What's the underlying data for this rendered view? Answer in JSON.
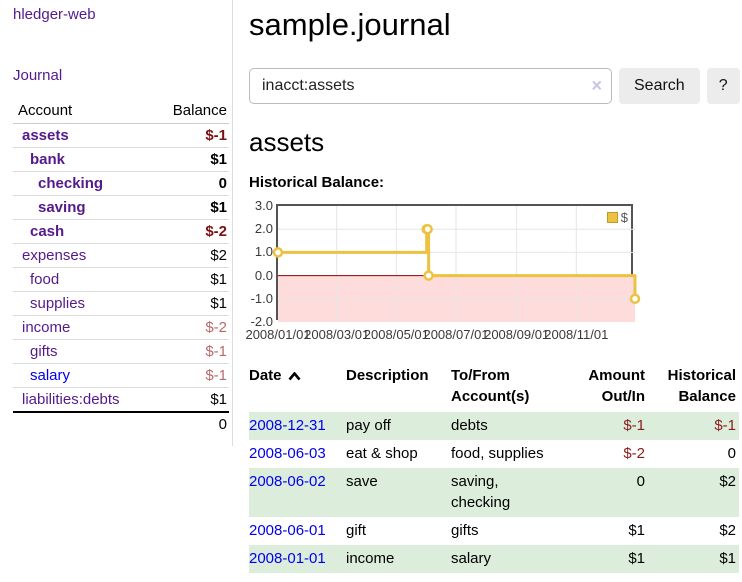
{
  "app_title": "hledger-web",
  "sidebar": {
    "nav_journal": "Journal",
    "accounts": {
      "col_account": "Account",
      "col_balance": "Balance",
      "rows": [
        {
          "name": "assets",
          "indent": 1,
          "bold": true,
          "balance": "$-1",
          "balance_tone": "neg-strong"
        },
        {
          "name": "bank",
          "indent": 2,
          "bold": true,
          "balance": "$1",
          "balance_tone": "normal"
        },
        {
          "name": "checking",
          "indent": 3,
          "bold": true,
          "balance": "0",
          "balance_tone": "normal"
        },
        {
          "name": "saving",
          "indent": 3,
          "bold": true,
          "balance": "$1",
          "balance_tone": "normal"
        },
        {
          "name": "cash",
          "indent": 2,
          "bold": true,
          "balance": "$-2",
          "balance_tone": "neg-strong"
        },
        {
          "name": "expenses",
          "indent": 1,
          "bold": false,
          "balance": "$2",
          "balance_tone": "normal"
        },
        {
          "name": "food",
          "indent": 2,
          "bold": false,
          "balance": "$1",
          "balance_tone": "normal"
        },
        {
          "name": "supplies",
          "indent": 2,
          "bold": false,
          "balance": "$1",
          "balance_tone": "normal"
        },
        {
          "name": "income",
          "indent": 1,
          "bold": false,
          "balance": "$-2",
          "balance_tone": "neg-soft"
        },
        {
          "name": "gifts",
          "indent": 2,
          "bold": false,
          "balance": "$-1",
          "balance_tone": "neg-soft"
        },
        {
          "name": "salary",
          "indent": 2,
          "bold": false,
          "balance": "$-1",
          "balance_tone": "neg-soft",
          "link_state": "unvisited"
        },
        {
          "name": "liabilities:debts",
          "indent": 1,
          "bold": false,
          "balance": "$1",
          "balance_tone": "normal"
        }
      ],
      "total": "0"
    }
  },
  "header": {
    "title": "sample.journal"
  },
  "search": {
    "value": "inacct:assets",
    "clear_icon": "×",
    "button_label": "Search",
    "help_label": "?"
  },
  "account_page": {
    "heading": "assets"
  },
  "chart_data": {
    "type": "line",
    "title": "Historical Balance:",
    "step": true,
    "series": [
      {
        "name": "$",
        "color": "#edc240",
        "points": [
          [
            "2008-01-01",
            1
          ],
          [
            "2008-06-01",
            2
          ],
          [
            "2008-06-02",
            2
          ],
          [
            "2008-06-03",
            0
          ],
          [
            "2008-12-31",
            -1
          ]
        ]
      }
    ],
    "xlim": [
      "2008-01-01",
      "2008-12-31"
    ],
    "ylim": [
      -2,
      3
    ],
    "yticks": [
      {
        "v": 3,
        "label": "3.0"
      },
      {
        "v": 2,
        "label": "2.0"
      },
      {
        "v": 1,
        "label": "1.0"
      },
      {
        "v": 0,
        "label": "0.0"
      },
      {
        "v": -1,
        "label": "-1.0"
      },
      {
        "v": -2,
        "label": "-2.0"
      }
    ],
    "xticks": [
      {
        "date": "2008-01-01",
        "label": "2008/01/01"
      },
      {
        "date": "2008-03-01",
        "label": "2008/03/01"
      },
      {
        "date": "2008-05-01",
        "label": "2008/05/01"
      },
      {
        "date": "2008-07-01",
        "label": "2008/07/01"
      },
      {
        "date": "2008-09-01",
        "label": "2008/09/01"
      },
      {
        "date": "2008-11-01",
        "label": "2008/11/01"
      }
    ],
    "legend": {
      "position": "top-right",
      "label": "$"
    },
    "grid": true,
    "negative_region_color": "#ffdcdc",
    "zero_line_color": "#8b0000"
  },
  "transactions": {
    "columns": [
      {
        "label": "Date",
        "align": "left",
        "sort": "asc"
      },
      {
        "label": "Description",
        "align": "left"
      },
      {
        "label": "To/From Account(s)",
        "align": "left"
      },
      {
        "label": "Amount Out/In",
        "align": "right"
      },
      {
        "label": "Historical Balance",
        "align": "right"
      }
    ],
    "rows": [
      {
        "date": "2008-12-31",
        "description": "pay off",
        "accounts": "debts",
        "amount": "$-1",
        "amount_negative": true,
        "balance": "$-1",
        "balance_negative": true
      },
      {
        "date": "2008-06-03",
        "description": "eat & shop",
        "accounts": "food, supplies",
        "amount": "$-2",
        "amount_negative": true,
        "balance": "0",
        "balance_negative": false
      },
      {
        "date": "2008-06-02",
        "description": "save",
        "accounts": "saving, checking",
        "amount": "0",
        "amount_negative": false,
        "balance": "$2",
        "balance_negative": false
      },
      {
        "date": "2008-06-01",
        "description": "gift",
        "accounts": "gifts",
        "amount": "$1",
        "amount_negative": false,
        "balance": "$2",
        "balance_negative": false
      },
      {
        "date": "2008-01-01",
        "description": "income",
        "accounts": "salary",
        "amount": "$1",
        "amount_negative": false,
        "balance": "$1",
        "balance_negative": false
      }
    ]
  },
  "colors": {
    "link_visited": "#551a8b",
    "link_unvisited": "#0000ee",
    "negative_strong": "#7e1010",
    "negative_soft": "#b96a6a",
    "table_negative": "#871e1e",
    "row_stripe": "#dceddc",
    "accent_gold": "#edc240",
    "chart_border": "#545454",
    "divider": "#dddddd"
  }
}
